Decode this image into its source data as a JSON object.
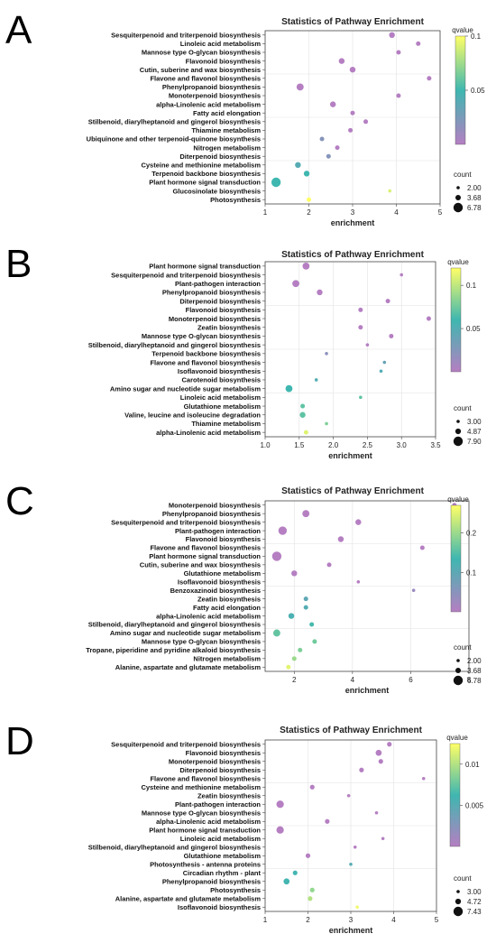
{
  "colors": {
    "low": "#b57fc2",
    "mid": "#3fb7b0",
    "high": "#ffff66",
    "mid2": "#7eb1c9"
  },
  "chart_data": [
    {
      "panel": "A",
      "type": "scatter",
      "title": "Statistics of Pathway Enrichment",
      "xlabel": "enrichment",
      "xlim": [
        1,
        5
      ],
      "xticks": [
        "1",
        "2",
        "3",
        "4",
        "5"
      ],
      "categories": [
        "Sesquiterpenoid and triterpenoid biosynthesis",
        "Linoleic acid metabolism",
        "Mannose type O-glycan biosynthesis",
        "Flavonoid biosynthesis",
        "Cutin, suberine and wax biosynthesis",
        "Flavone and flavonol biosynthesis",
        "Phenylpropanoid biosynthesis",
        "Monoterpenoid biosynthesis",
        "alpha-Linolenic acid metabolism",
        "Fatty acid elongation",
        "Stilbenoid, diarylheptanoid and gingerol biosynthesis",
        "Thiamine metabolism",
        "Ubiquinone and other terpenoid-quinone biosynthesis",
        "Nitrogen metabolism",
        "Diterpenoid biosynthesis",
        "Cysteine and methionine metabolism",
        "Terpenoid backbone biosynthesis",
        "Plant hormone signal transduction",
        "Glucosinolate biosynthesis",
        "Photosynthesis"
      ],
      "x": [
        3.9,
        4.5,
        4.05,
        2.75,
        3.0,
        4.75,
        1.8,
        4.05,
        2.55,
        3.0,
        3.3,
        2.95,
        2.3,
        2.65,
        2.45,
        1.75,
        1.95,
        1.25,
        3.85,
        2.0
      ],
      "qvalue": [
        0.0,
        0.0,
        0.0,
        0.0,
        0.0,
        0.0,
        0.0,
        0.0,
        0.0,
        0.0,
        0.0,
        0.0,
        0.02,
        0.0,
        0.02,
        0.04,
        0.05,
        0.05,
        0.09,
        0.1
      ],
      "count": [
        4,
        3,
        3,
        4,
        4,
        3,
        5,
        3,
        4,
        3,
        3,
        3,
        3,
        3,
        3,
        4,
        4,
        6.78,
        2,
        3
      ],
      "legend_q": {
        "title": "qvalue",
        "min": 0,
        "max": 0.1,
        "ticks": [
          0.1,
          0.05
        ],
        "tick_labels": [
          "0.1",
          "0.05"
        ]
      },
      "legend_count": {
        "title": "count",
        "values": [
          2.0,
          3.68,
          6.78
        ],
        "labels": [
          "2.00",
          "3.68",
          "6.78"
        ]
      }
    },
    {
      "panel": "B",
      "type": "scatter",
      "title": "Statistics of Pathway Enrichment",
      "xlabel": "enrichment",
      "xlim": [
        1,
        3.5
      ],
      "xticks": [
        "1.0",
        "1.5",
        "2.0",
        "2.5",
        "3.0",
        "3.5"
      ],
      "categories": [
        "Plant hormone signal transduction",
        "Sesquiterpenoid and triterpenoid biosynthesis",
        "Plant-pathogen interaction",
        "Phenylpropanoid biosynthesis",
        "Diterpenoid biosynthesis",
        "Flavonoid biosynthesis",
        "Monoterpenoid biosynthesis",
        "Zeatin biosynthesis",
        "Mannose type O-glycan biosynthesis",
        "Stilbenoid, diarylheptanoid and gingerol biosynthesis",
        "Terpenoid backbone biosynthesis",
        "Flavone and flavonol biosynthesis",
        "Isoflavonoid biosynthesis",
        "Carotenoid biosynthesis",
        "Amino sugar and nucleotide sugar metabolism",
        "Linoleic acid metabolism",
        "Glutathione metabolism",
        "Valine, leucine and isoleucine degradation",
        "Thiamine metabolism",
        "alpha-Linolenic acid metabolism"
      ],
      "x": [
        1.6,
        3.0,
        1.45,
        1.8,
        2.8,
        2.4,
        3.4,
        2.4,
        2.85,
        2.5,
        1.9,
        2.75,
        2.7,
        1.75,
        1.35,
        2.4,
        1.55,
        1.55,
        1.9,
        1.6
      ],
      "qvalue": [
        0.0,
        0.0,
        0.0,
        0.0,
        0.0,
        0.0,
        0.0,
        0.0,
        0.0,
        0.0,
        0.02,
        0.04,
        0.05,
        0.05,
        0.06,
        0.07,
        0.07,
        0.07,
        0.08,
        0.11
      ],
      "count": [
        6,
        3,
        6,
        5,
        4,
        4,
        4,
        4,
        4,
        3,
        3,
        3,
        3,
        3,
        6,
        3,
        4,
        5,
        3,
        4
      ],
      "legend_q": {
        "title": "qvalue",
        "min": 0,
        "max": 0.12,
        "ticks": [
          0.1,
          0.05
        ],
        "tick_labels": [
          "0.1",
          "0.05"
        ]
      },
      "legend_count": {
        "title": "count",
        "values": [
          3.0,
          4.87,
          7.9
        ],
        "labels": [
          "3.00",
          "4.87",
          "7.90"
        ]
      }
    },
    {
      "panel": "C",
      "type": "scatter",
      "title": "Statistics of Pathway Enrichment",
      "xlabel": "enrichment",
      "xlim": [
        1,
        8
      ],
      "xticks": [
        "2",
        "4",
        "6",
        "8"
      ],
      "categories": [
        "Monoterpenoid biosynthesis",
        "Phenylpropanoid biosynthesis",
        "Sesquiterpenoid and triterpenoid biosynthesis",
        "Plant-pathogen interaction",
        "Flavonoid biosynthesis",
        "Flavone and flavonol biosynthesis",
        "Plant hormone signal transduction",
        "Cutin, suberine and wax biosynthesis",
        "Glutathione metabolism",
        "Isoflavonoid biosynthesis",
        "Benzoxazinoid biosynthesis",
        "Zeatin biosynthesis",
        "Fatty acid elongation",
        "alpha-Linolenic acid metabolism",
        "Stilbenoid, diarylheptanoid and gingerol biosynthesis",
        "Amino sugar and nucleotide sugar metabolism",
        "Mannose type O-glycan biosynthesis",
        "Tropane, piperidine and pyridine alkaloid biosynthesis",
        "Nitrogen metabolism",
        "Alanine, aspartate and glutamate metabolism"
      ],
      "x": [
        7.5,
        2.4,
        4.2,
        1.6,
        3.6,
        6.4,
        1.4,
        3.2,
        2.0,
        4.2,
        6.1,
        2.4,
        2.4,
        1.9,
        2.6,
        1.4,
        2.7,
        2.2,
        2.0,
        1.8
      ],
      "qvalue": [
        0.0,
        0.0,
        0.0,
        0.0,
        0.0,
        0.0,
        0.0,
        0.0,
        0.0,
        0.0,
        0.03,
        0.1,
        0.11,
        0.12,
        0.14,
        0.16,
        0.17,
        0.18,
        0.2,
        0.25
      ],
      "count": [
        3,
        5,
        4,
        6,
        4,
        3,
        6.78,
        3,
        4,
        2,
        2,
        3,
        3,
        4,
        3,
        5,
        3,
        3,
        3,
        3
      ],
      "legend_q": {
        "title": "qvalue",
        "min": 0,
        "max": 0.27,
        "ticks": [
          0.2,
          0.1
        ],
        "tick_labels": [
          "0.2",
          "0.1"
        ]
      },
      "legend_count": {
        "title": "count",
        "values": [
          2.0,
          3.68,
          6.78
        ],
        "labels": [
          "2.00",
          "3.68",
          "6.78"
        ]
      }
    },
    {
      "panel": "D",
      "type": "scatter",
      "title": "Statistics of Pathway Enrichment",
      "xlabel": "enrichment",
      "xlim": [
        1,
        5
      ],
      "xticks": [
        "1",
        "2",
        "3",
        "4",
        "5"
      ],
      "categories": [
        "Sesquiterpenoid and triterpenoid biosynthesis",
        "Flavonoid biosynthesis",
        "Monoterpenoid biosynthesis",
        "Diterpenoid biosynthesis",
        "Flavone and flavonol biosynthesis",
        "Cysteine and methionine metabolism",
        "Zeatin biosynthesis",
        "Plant-pathogen interaction",
        "Mannose type O-glycan biosynthesis",
        "alpha-Linolenic acid metabolism",
        "Plant hormone signal transduction",
        "Linoleic acid metabolism",
        "Stilbenoid, diarylheptanoid and gingerol biosynthesis",
        "Glutathione metabolism",
        "Photosynthesis - antenna proteins",
        "Circadian rhythm - plant",
        "Phenylpropanoid biosynthesis",
        "Photosynthesis",
        "Alanine, aspartate and glutamate metabolism",
        "Isoflavonoid biosynthesis"
      ],
      "x": [
        3.9,
        3.65,
        3.7,
        3.25,
        4.7,
        2.1,
        2.95,
        1.35,
        3.6,
        2.45,
        1.35,
        3.75,
        3.1,
        2.0,
        3.0,
        1.7,
        1.5,
        2.1,
        2.05,
        3.15
      ],
      "qvalue": [
        0.0,
        0.0,
        0.0,
        0.0,
        0.0,
        0.0,
        0.0,
        0.0,
        0.0,
        0.0,
        0.0,
        0.0,
        0.0,
        0.0,
        0.005,
        0.006,
        0.006,
        0.009,
        0.01,
        0.012
      ],
      "count": [
        4,
        5,
        4,
        4,
        3,
        4,
        3,
        6,
        3,
        4,
        6,
        3,
        3,
        4,
        3,
        4,
        5,
        4,
        4,
        3
      ],
      "legend_q": {
        "title": "qvalue",
        "min": 0,
        "max": 0.0125,
        "ticks": [
          0.01,
          0.005
        ],
        "tick_labels": [
          "0.01",
          "0.005"
        ]
      },
      "legend_count": {
        "title": "count",
        "values": [
          3.0,
          4.72,
          7.43
        ],
        "labels": [
          "3.00",
          "4.72",
          "7.43"
        ]
      }
    }
  ]
}
